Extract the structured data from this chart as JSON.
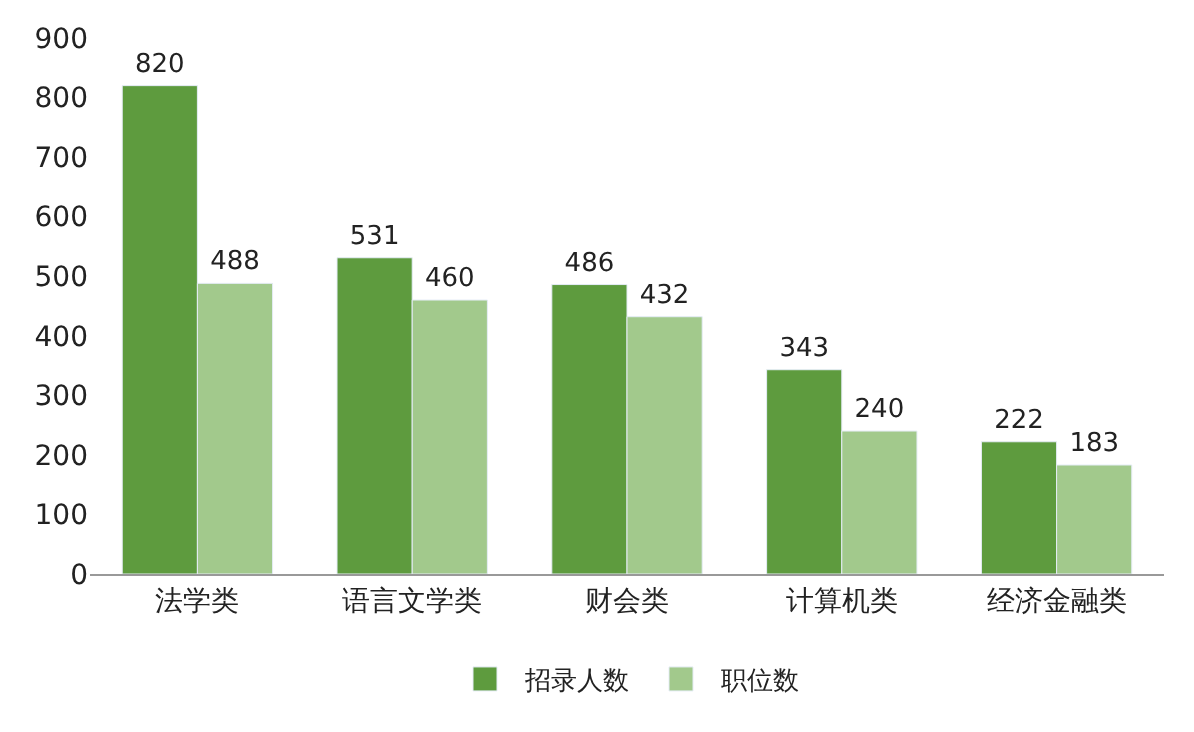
{
  "chart_data": {
    "type": "bar",
    "categories": [
      "法学类",
      "语言文学类",
      "财会类",
      "计算机类",
      "经济金融类"
    ],
    "series": [
      {
        "name": "招录人数",
        "color": "#5e9b3e",
        "values": [
          820,
          531,
          486,
          343,
          222
        ]
      },
      {
        "name": "职位数",
        "color": "#a2c98c",
        "values": [
          488,
          460,
          432,
          240,
          183
        ]
      }
    ],
    "ylim": [
      0,
      900
    ],
    "yticks": [
      0,
      100,
      200,
      300,
      400,
      500,
      600,
      700,
      800,
      900
    ],
    "data_labels": true,
    "legend": "bottom"
  }
}
